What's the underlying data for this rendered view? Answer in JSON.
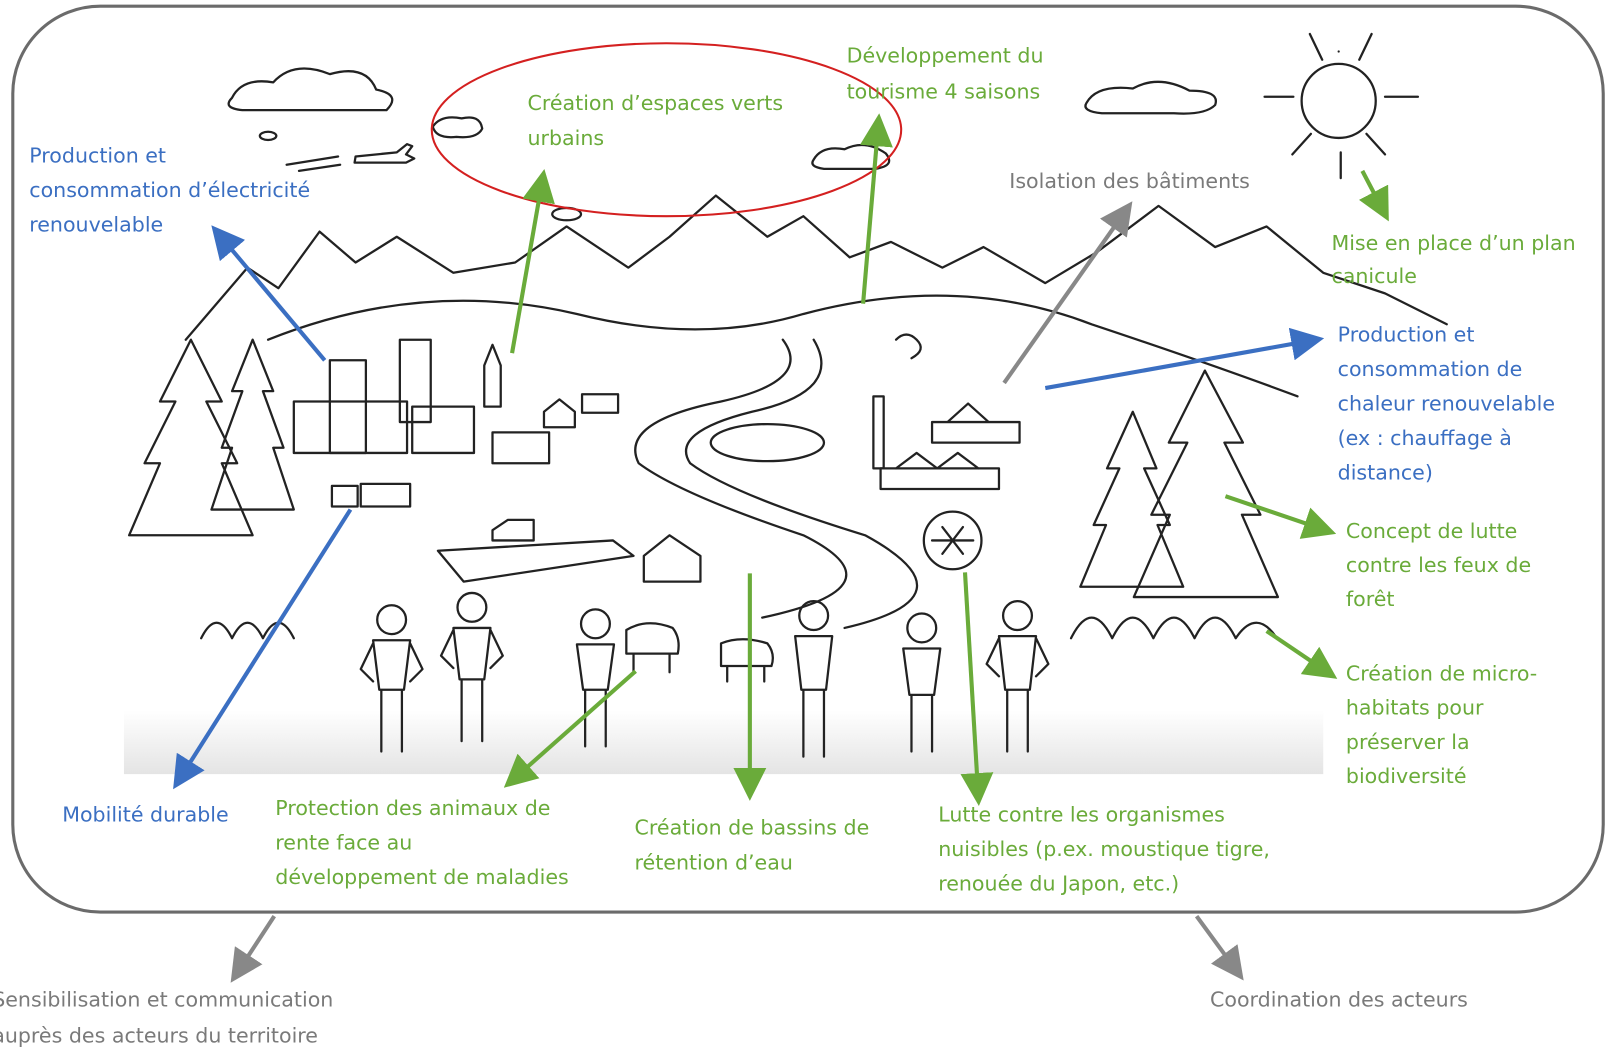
{
  "labels": [
    {
      "lines": [
        "Production et",
        "consommation d’électricité",
        "renouvelable"
      ]
    },
    {
      "lines": [
        "Création d’espaces verts",
        "urbains"
      ]
    },
    {
      "lines": [
        "Développement du",
        "tourisme 4 saisons"
      ]
    },
    {
      "lines": [
        "Isolation des bâtiments"
      ]
    },
    {
      "lines": [
        "Mise en place d’un plan",
        "canicule"
      ]
    },
    {
      "lines": [
        "Production et",
        "consommation de",
        "chaleur renouvelable",
        "(ex : chauffage à",
        "distance)"
      ]
    },
    {
      "lines": [
        "Concept de lutte",
        "contre les feux de",
        "forêt"
      ]
    },
    {
      "lines": [
        "Création de micro-",
        "habitats pour",
        "préserver la",
        "biodiversité"
      ]
    },
    {
      "lines": [
        "Mobilité durable"
      ]
    },
    {
      "lines": [
        "Protection des animaux de",
        "rente face au",
        "développement de maladies"
      ]
    },
    {
      "lines": [
        "Création de bassins de",
        "rétention d’eau"
      ]
    },
    {
      "lines": [
        "Lutte contre les organismes",
        "nuisibles (p.ex. moustique tigre,",
        "renouée du Japon, etc.)"
      ]
    },
    {
      "lines": [
        "Sensibilisation et communication",
        "auprès des acteurs du territoire"
      ]
    },
    {
      "lines": [
        "Coordination des acteurs"
      ]
    }
  ]
}
